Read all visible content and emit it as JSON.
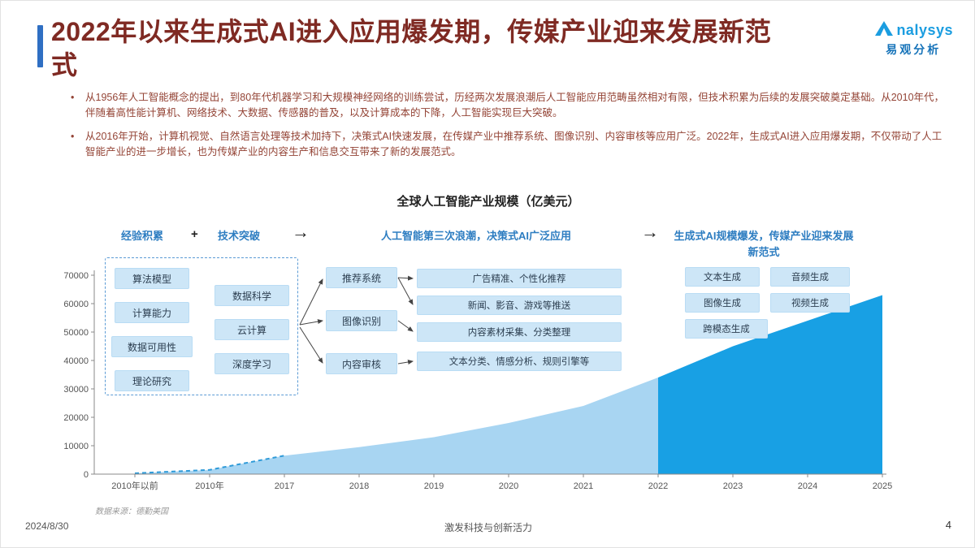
{
  "slide": {
    "title": "2022年以来生成式AI进入应用爆发期，传媒产业迎来发展新范式",
    "date": "2024/8/30",
    "footer_center": "激发科技与创新活力",
    "page_number": "4",
    "source_note": "数据来源：德勤美国"
  },
  "logo": {
    "brand": "nalysys",
    "brand_cn": "易观分析"
  },
  "bullets": [
    "从1956年人工智能概念的提出，到80年代机器学习和大规模神经网络的训练尝试，历经两次发展浪潮后人工智能应用范畴虽然相对有限，但技术积累为后续的发展突破奠定基础。从2010年代，伴随着高性能计算机、网络技术、大数据、传感器的普及，以及计算成本的下降，人工智能实现巨大突破。",
    "从2016年开始，计算机视觉、自然语言处理等技术加持下，决策式AI快速发展，在传媒产业中推荐系统、图像识别、内容审核等应用广泛。2022年，生成式AI进入应用爆发期，不仅带动了人工智能产业的进一步增长，也为传媒产业的内容生产和信息交互带来了新的发展范式。"
  ],
  "flow": {
    "stage1_label_a": "经验积累",
    "stage1_plus": "+",
    "stage1_label_b": "技术突破",
    "arrow1": "→",
    "stage2_label": "人工智能第三次浪潮，决策式AI广泛应用",
    "arrow2": "→",
    "stage3_label": "生成式AI规模爆发，传媒产业迎来发展新范式",
    "experience_items": [
      "算法模型",
      "计算能力",
      "数据可用性",
      "理论研究"
    ],
    "tech_items": [
      "数据科学",
      "云计算",
      "深度学习"
    ],
    "decision_items": [
      "推荐系统",
      "图像识别",
      "内容审核"
    ],
    "application_items": [
      "广告精准、个性化推荐",
      "新闻、影音、游戏等推送",
      "内容素材采集、分类整理",
      "文本分类、情感分析、规则引擎等"
    ],
    "generative_items": [
      "文本生成",
      "音频生成",
      "图像生成",
      "视频生成",
      "跨模态生成"
    ]
  },
  "chart_data": {
    "type": "area",
    "title": "全球人工智能产业规模（亿美元）",
    "categories": [
      "2010年以前",
      "2010年",
      "2017",
      "2018",
      "2019",
      "2020",
      "2021",
      "2022",
      "2023",
      "2024",
      "2025"
    ],
    "values": [
      300,
      1500,
      6500,
      9500,
      13000,
      18000,
      24000,
      34000,
      45000,
      54000,
      63000
    ],
    "ylim": [
      0,
      70000
    ],
    "ytick_step": 10000,
    "dashed_until_index": 2,
    "highlight_from_index": 7,
    "legend": [],
    "grid": false,
    "colors": {
      "area_light": "#a8d5f2",
      "area_dark": "#18a0e4",
      "dashed_line": "#2e9ad8"
    }
  }
}
